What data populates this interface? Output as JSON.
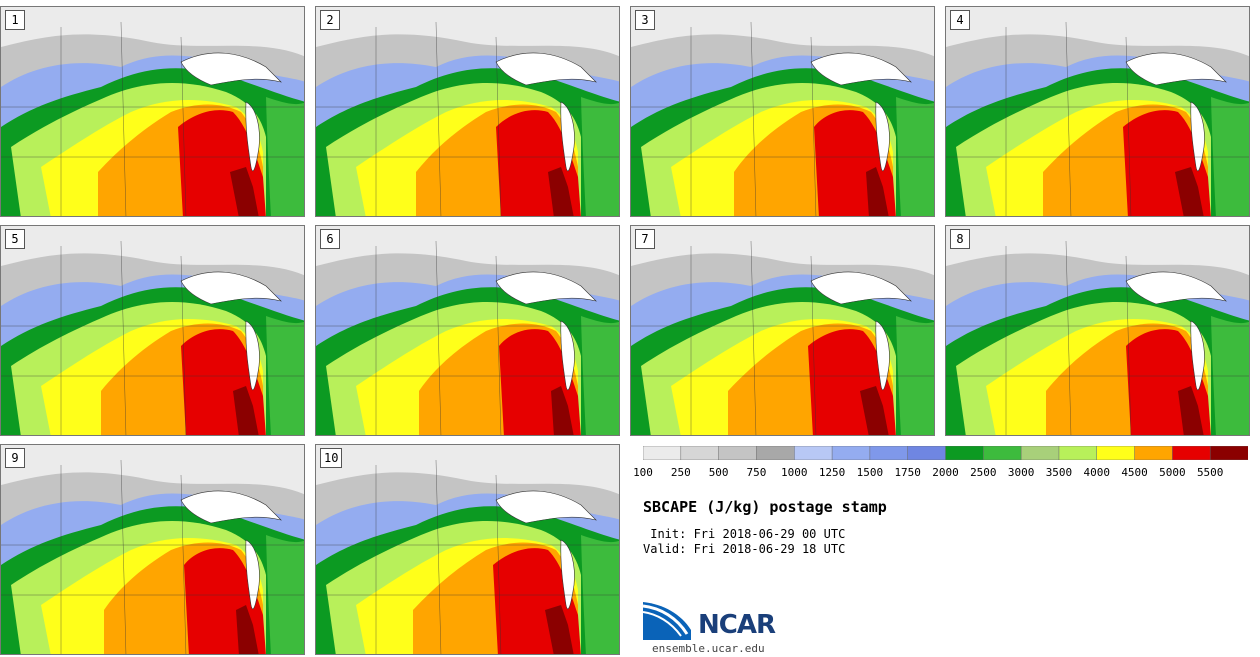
{
  "title": "SBCAPE (J/kg) postage stamp",
  "init_time": " Init: Fri 2018-06-29 00 UTC",
  "valid_time": "Valid: Fri 2018-06-29 18 UTC",
  "url": "ensemble.ucar.edu",
  "logo_text": "NCAR",
  "members": [
    "1",
    "2",
    "3",
    "4",
    "5",
    "6",
    "7",
    "8",
    "9",
    "10"
  ],
  "colorbar": {
    "ticks": [
      "100",
      "250",
      "500",
      "750",
      "1000",
      "1250",
      "1500",
      "1750",
      "2000",
      "2500",
      "3000",
      "3500",
      "4000",
      "4500",
      "5000",
      "5500"
    ],
    "colors": [
      "#ebebeb",
      "#d6d6d6",
      "#c4c4c4",
      "#a8a8a8",
      "#b8c8f5",
      "#94acf0",
      "#7f98ea",
      "#6f86e2",
      "#0c9a22",
      "#3dbb3d",
      "#a8d07a",
      "#b8f05a",
      "#ffff1a",
      "#ffa500",
      "#e60000",
      "#8b0000"
    ]
  }
}
